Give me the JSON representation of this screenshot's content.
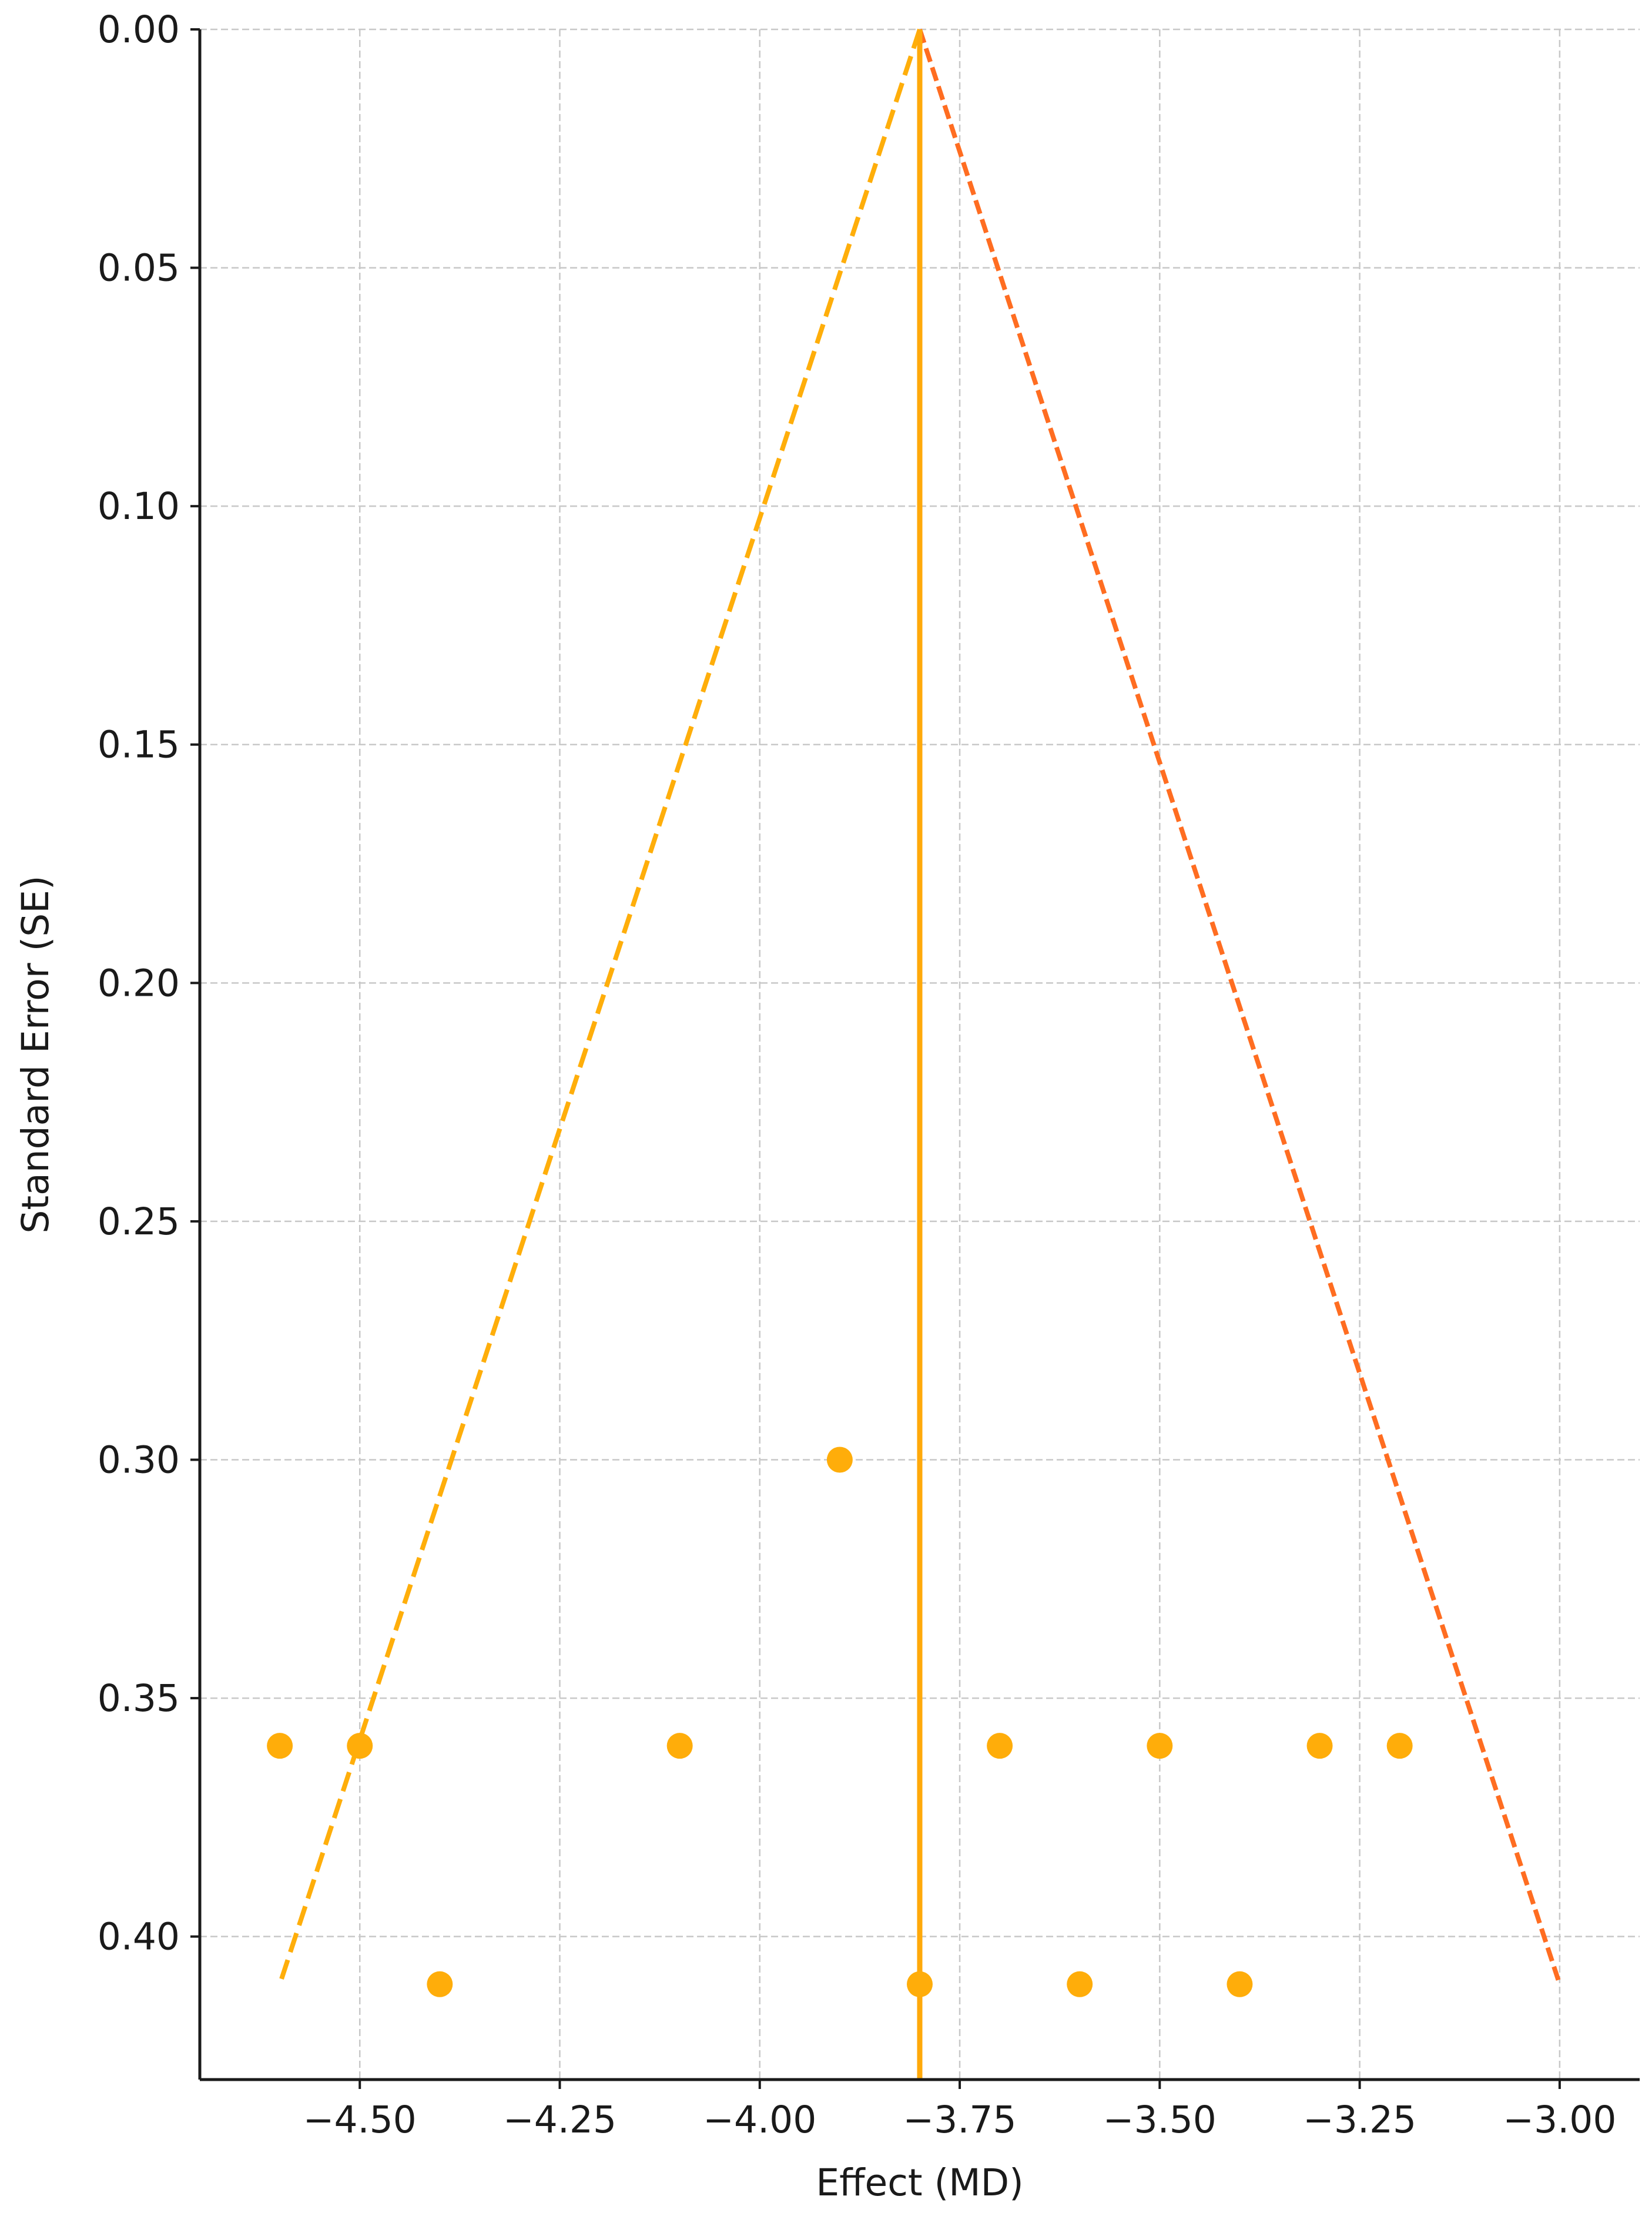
{
  "chart_data": {
    "type": "scatter",
    "title": "",
    "xlabel": "Effect (MD)",
    "ylabel": "Standard Error (SE)",
    "xlim": [
      -4.7,
      -2.9
    ],
    "ylim": [
      0.43,
      0.0
    ],
    "y_inverted": true,
    "grid": true,
    "x_ticks": [
      -4.5,
      -4.25,
      -4.0,
      -3.75,
      -3.5,
      -3.25,
      -3.0
    ],
    "x_tick_labels": [
      "−4.50",
      "−4.25",
      "−4.00",
      "−3.75",
      "−3.50",
      "−3.25",
      "−3.00"
    ],
    "y_ticks": [
      0.0,
      0.05,
      0.1,
      0.15,
      0.2,
      0.25,
      0.3,
      0.35,
      0.4
    ],
    "y_tick_labels": [
      "0.00",
      "0.05",
      "0.10",
      "0.15",
      "0.20",
      "0.25",
      "0.30",
      "0.35",
      "0.40"
    ],
    "points": [
      {
        "x": -3.9,
        "y": 0.3
      },
      {
        "x": -4.6,
        "y": 0.36
      },
      {
        "x": -4.5,
        "y": 0.36
      },
      {
        "x": -4.1,
        "y": 0.36
      },
      {
        "x": -3.7,
        "y": 0.36
      },
      {
        "x": -3.5,
        "y": 0.36
      },
      {
        "x": -3.3,
        "y": 0.36
      },
      {
        "x": -3.2,
        "y": 0.36
      },
      {
        "x": -4.4,
        "y": 0.41
      },
      {
        "x": -3.8,
        "y": 0.41
      },
      {
        "x": -3.6,
        "y": 0.41
      },
      {
        "x": -3.4,
        "y": 0.41
      }
    ],
    "pooled_effect": -3.8,
    "funnel_left": {
      "x": [
        -3.8,
        -4.6
      ],
      "y": [
        0.0,
        0.41
      ]
    },
    "funnel_right": {
      "x": [
        -3.8,
        -3.0
      ],
      "y": [
        0.0,
        0.41
      ]
    },
    "colors": {
      "points": "#ffad0a",
      "pooled_line": "#ffa90a",
      "funnel_left": "#ffae0a",
      "funnel_right": "#ff6d21",
      "grid": "#c8c8c8",
      "axis": "#1a1a1a"
    }
  }
}
